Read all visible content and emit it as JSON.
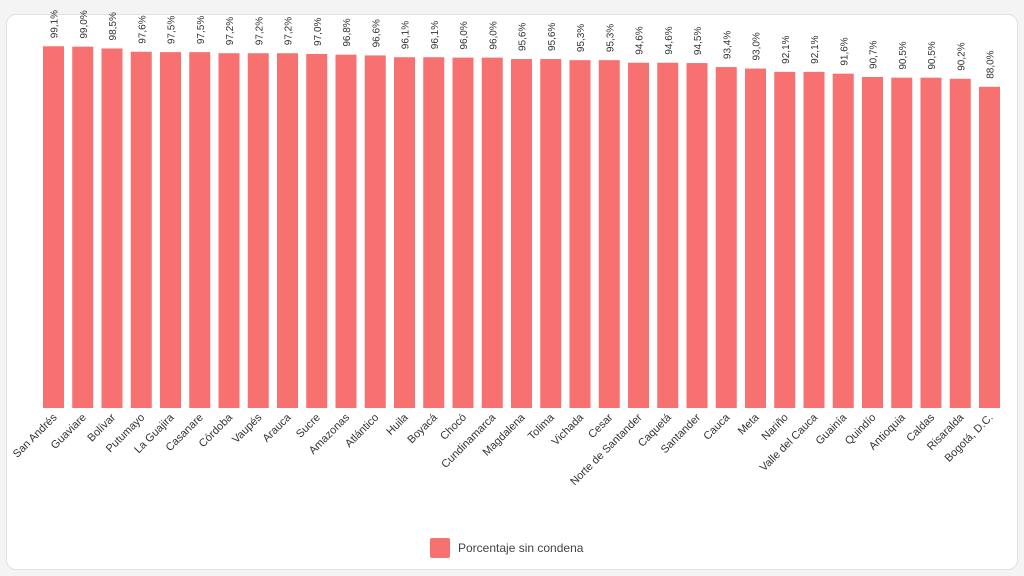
{
  "chart_data": {
    "type": "bar",
    "title": "",
    "xlabel": "",
    "ylabel": "",
    "ylim": [
      0,
      100
    ],
    "grid": false,
    "legend_position": "bottom-center",
    "bar_color": "#f87171",
    "categories": [
      "San Andrés",
      "Guaviare",
      "Bolívar",
      "Putumayo",
      "La Guajira",
      "Casanare",
      "Córdoba",
      "Vaupés",
      "Arauca",
      "Sucre",
      "Amazonas",
      "Atlántico",
      "Huila",
      "Boyacá",
      "Chocó",
      "Cundinamarca",
      "Magdalena",
      "Tolima",
      "Vichada",
      "Cesar",
      "Norte de Santander",
      "Caquetá",
      "Santander",
      "Cauca",
      "Meta",
      "Nariño",
      "Valle del Cauca",
      "Guainía",
      "Quindío",
      "Antioquia",
      "Caldas",
      "Risaralda",
      "Bogotá, D.C."
    ],
    "values": [
      99.1,
      99.0,
      98.5,
      97.6,
      97.5,
      97.5,
      97.2,
      97.2,
      97.2,
      97.0,
      96.8,
      96.6,
      96.1,
      96.1,
      96.0,
      96.0,
      95.6,
      95.6,
      95.3,
      95.3,
      94.6,
      94.6,
      94.5,
      93.4,
      93.0,
      92.1,
      92.1,
      91.6,
      90.7,
      90.5,
      90.5,
      90.2,
      88.0
    ],
    "value_labels": [
      "99,1%",
      "99,0%",
      "98,5%",
      "97,6%",
      "97,5%",
      "97,5%",
      "97,2%",
      "97,2%",
      "97,2%",
      "97,0%",
      "96,8%",
      "96,6%",
      "96,1%",
      "96,1%",
      "96,0%",
      "96,0%",
      "95,6%",
      "95,6%",
      "95,3%",
      "95,3%",
      "94,6%",
      "94,6%",
      "94,5%",
      "93,4%",
      "93,0%",
      "92,1%",
      "92,1%",
      "91,6%",
      "90,7%",
      "90,5%",
      "90,5%",
      "90,2%",
      "88,0%"
    ],
    "series": [
      {
        "name": "Porcentaje sin condena"
      }
    ]
  }
}
